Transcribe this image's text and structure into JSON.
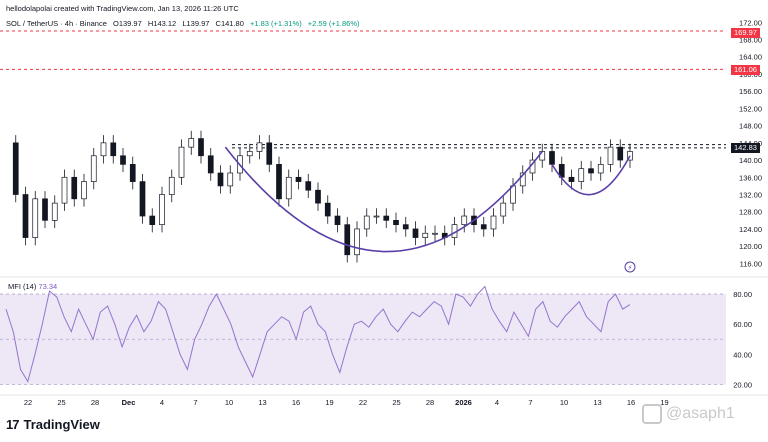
{
  "header": {
    "attribution": "hellodolapolai created with TradingView.com, Jan 13, 2026 11:26 UTC"
  },
  "symbol_line": {
    "symbol": "SOL / TetherUS · 4h · Binance",
    "open": "O139.97",
    "high": "H143.12",
    "low": "L139.97",
    "close": "C141.80",
    "change": "+1.83 (+1.31%)",
    "change2": "+2.59 (+1.86%)"
  },
  "colors": {
    "up": "#089981",
    "candle": "#131722",
    "curve": "#5b3fa8",
    "red_line": "#f23645",
    "mfi_line": "#9575cd",
    "mfi_band": "#ede7f6"
  },
  "price_tags": {
    "upper_red": "169.97",
    "lower_red": "161.06",
    "current": "142.83"
  },
  "chart_data": {
    "type": "line",
    "price_axis": {
      "ylim": [
        114,
        173
      ],
      "ticks": [
        "172.00",
        "168.00",
        "164.00",
        "160.00",
        "156.00",
        "152.00",
        "148.00",
        "144.00",
        "140.00",
        "136.00",
        "132.00",
        "128.00",
        "124.00",
        "120.00",
        "116.00"
      ]
    },
    "x_ticks": [
      "22",
      "25",
      "28",
      "Dec",
      "4",
      "7",
      "10",
      "13",
      "16",
      "19",
      "22",
      "25",
      "28",
      "2026",
      "4",
      "7",
      "10",
      "13",
      "16",
      "19"
    ],
    "horizontal_levels": [
      {
        "value": 169.97,
        "style": "dashed",
        "color": "#f23645"
      },
      {
        "value": 161.06,
        "style": "dashed",
        "color": "#f23645"
      },
      {
        "value": 142.83,
        "style": "dashed",
        "color": "#131722"
      },
      {
        "value": 143.6,
        "style": "dashed",
        "color": "#131722"
      }
    ],
    "price_path": [
      [
        0,
        144
      ],
      [
        2,
        132
      ],
      [
        4,
        122
      ],
      [
        6,
        131
      ],
      [
        8,
        126
      ],
      [
        10,
        130
      ],
      [
        12,
        136
      ],
      [
        14,
        131
      ],
      [
        16,
        135
      ],
      [
        18,
        141
      ],
      [
        20,
        144
      ],
      [
        22,
        141
      ],
      [
        24,
        139
      ],
      [
        26,
        135
      ],
      [
        28,
        127
      ],
      [
        30,
        125
      ],
      [
        32,
        132
      ],
      [
        34,
        136
      ],
      [
        36,
        143
      ],
      [
        38,
        145
      ],
      [
        40,
        141
      ],
      [
        42,
        137
      ],
      [
        44,
        134
      ],
      [
        46,
        137
      ],
      [
        48,
        141
      ],
      [
        50,
        142
      ],
      [
        52,
        144
      ],
      [
        54,
        139
      ],
      [
        56,
        131
      ],
      [
        58,
        136
      ],
      [
        60,
        135
      ],
      [
        62,
        133
      ],
      [
        64,
        130
      ],
      [
        66,
        127
      ],
      [
        68,
        125
      ],
      [
        70,
        118
      ],
      [
        72,
        124
      ],
      [
        74,
        127
      ],
      [
        76,
        127
      ],
      [
        78,
        126
      ],
      [
        80,
        125
      ],
      [
        82,
        124
      ],
      [
        84,
        122
      ],
      [
        86,
        123
      ],
      [
        88,
        123
      ],
      [
        90,
        122
      ],
      [
        92,
        125
      ],
      [
        94,
        127
      ],
      [
        96,
        125
      ],
      [
        98,
        124
      ],
      [
        100,
        127
      ],
      [
        102,
        130
      ],
      [
        104,
        134
      ],
      [
        106,
        137
      ],
      [
        108,
        140
      ],
      [
        110,
        142
      ],
      [
        112,
        139
      ],
      [
        114,
        136
      ],
      [
        116,
        135
      ],
      [
        118,
        138
      ],
      [
        120,
        137
      ],
      [
        122,
        139
      ],
      [
        124,
        143
      ],
      [
        126,
        140
      ],
      [
        128,
        142
      ]
    ],
    "cup_curve": "drawn",
    "mfi": {
      "label": "MFI (14)",
      "value": "73.34",
      "ylim": [
        15,
        88
      ],
      "ticks": [
        "80.00",
        "60.00",
        "40.00",
        "20.00"
      ],
      "band": [
        20,
        80
      ],
      "values": [
        70,
        55,
        30,
        22,
        40,
        60,
        82,
        78,
        65,
        55,
        70,
        60,
        50,
        68,
        72,
        60,
        45,
        58,
        66,
        55,
        62,
        75,
        70,
        55,
        40,
        30,
        50,
        60,
        72,
        80,
        70,
        60,
        45,
        35,
        25,
        40,
        55,
        60,
        65,
        62,
        50,
        68,
        72,
        60,
        55,
        40,
        28,
        45,
        60,
        62,
        58,
        65,
        70,
        60,
        55,
        62,
        68,
        65,
        70,
        75,
        72,
        60,
        80,
        78,
        72,
        80,
        85,
        70,
        62,
        55,
        68,
        60,
        52,
        70,
        75,
        62,
        58,
        65,
        70,
        75,
        65,
        60,
        55,
        75,
        80,
        70,
        73
      ]
    }
  },
  "footer": {
    "logo_mark": "17",
    "logo_text": "TradingView",
    "watermark": "@asaph1"
  }
}
